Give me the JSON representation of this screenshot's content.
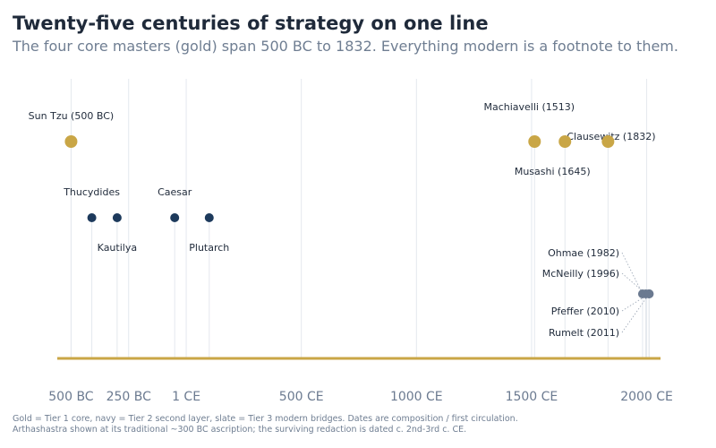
{
  "title": "Twenty-five centuries of strategy on one line",
  "subtitle": "The four core masters (gold) span 500 BC to 1832. Everything modern is a footnote to them.",
  "footnotes": [
    "Gold = Tier 1 core, navy = Tier 2 second layer, slate = Tier 3 modern bridges. Dates are composition / first circulation.",
    "Arthashastra shown at its traditional ~300 BC ascription; the surviving redaction is dated c. 2nd-3rd c. CE."
  ],
  "colors": {
    "tier1": "#c9a646",
    "tier2": "#1d3a5c",
    "tier3": "#6b7a90",
    "grid": "#e4e8ee",
    "axis": "#c9a646",
    "label": "#1f2a3a",
    "tick": "#6b7a90"
  },
  "chart_data": {
    "type": "scatter",
    "title": "Twenty-five centuries of strategy on one line",
    "xlim": [
      -560,
      2060
    ],
    "ticks": [
      {
        "value": -500,
        "label": "500 BC"
      },
      {
        "value": -250,
        "label": "250 BC"
      },
      {
        "value": 0,
        "label": "1 CE"
      },
      {
        "value": 500,
        "label": "500 CE"
      },
      {
        "value": 1000,
        "label": "1000 CE"
      },
      {
        "value": 1500,
        "label": "1500 CE"
      },
      {
        "value": 2000,
        "label": "2000 CE"
      }
    ],
    "grid": true,
    "points": [
      {
        "name": "Sun Tzu",
        "year_label": "500 BC",
        "x": -500,
        "tier": 1
      },
      {
        "name": "Machiavelli",
        "year_label": "1513",
        "x": 1513,
        "tier": 1
      },
      {
        "name": "Musashi",
        "year_label": "1645",
        "x": 1645,
        "tier": 1
      },
      {
        "name": "Clausewitz",
        "year_label": "1832",
        "x": 1832,
        "tier": 1
      },
      {
        "name": "Thucydides",
        "year_label": "",
        "x": -410,
        "tier": 2
      },
      {
        "name": "Kautilya",
        "year_label": "",
        "x": -300,
        "tier": 2
      },
      {
        "name": "Caesar",
        "year_label": "",
        "x": -50,
        "tier": 2
      },
      {
        "name": "Plutarch",
        "year_label": "",
        "x": 100,
        "tier": 2
      },
      {
        "name": "Ohmae",
        "year_label": "1982",
        "x": 1982,
        "tier": 3
      },
      {
        "name": "McNeilly",
        "year_label": "1996",
        "x": 1996,
        "tier": 3
      },
      {
        "name": "Pfeffer",
        "year_label": "2010",
        "x": 2010,
        "tier": 3
      },
      {
        "name": "Rumelt",
        "year_label": "2011",
        "x": 2011,
        "tier": 3
      }
    ]
  }
}
